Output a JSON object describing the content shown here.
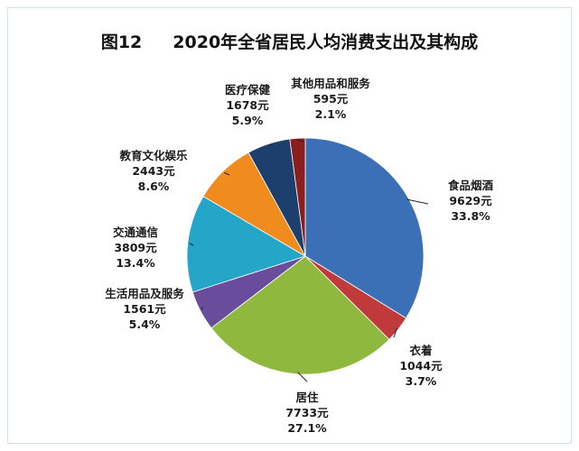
{
  "chart_data": {
    "type": "pie",
    "figure_no": "图12",
    "title": "2020年全省居民人均消费支出及其构成",
    "slices": [
      {
        "name": "食品烟酒",
        "value": 9629,
        "value_label": "9629元",
        "percent": 33.8,
        "percent_label": "33.8%",
        "color": "#3b6fb6"
      },
      {
        "name": "衣着",
        "value": 1044,
        "value_label": "1044元",
        "percent": 3.7,
        "percent_label": "3.7%",
        "color": "#c0393b"
      },
      {
        "name": "居住",
        "value": 7733,
        "value_label": "7733元",
        "percent": 27.1,
        "percent_label": "27.1%",
        "color": "#8fb83e"
      },
      {
        "name": "生活用品及服务",
        "value": 1561,
        "value_label": "1561元",
        "percent": 5.4,
        "percent_label": "5.4%",
        "color": "#6a4c9c"
      },
      {
        "name": "交通通信",
        "value": 3809,
        "value_label": "3809元",
        "percent": 13.4,
        "percent_label": "13.4%",
        "color": "#25a6c8"
      },
      {
        "name": "教育文化娱乐",
        "value": 2443,
        "value_label": "2443元",
        "percent": 8.6,
        "percent_label": "8.6%",
        "color": "#f08c1e"
      },
      {
        "name": "医疗保健",
        "value": 1678,
        "value_label": "1678元",
        "percent": 5.9,
        "percent_label": "5.9%",
        "color": "#1d3f6e"
      },
      {
        "name": "其他用品和服务",
        "value": 595,
        "value_label": "595元",
        "percent": 2.1,
        "percent_label": "2.1%",
        "color": "#8a1f1f"
      }
    ]
  }
}
